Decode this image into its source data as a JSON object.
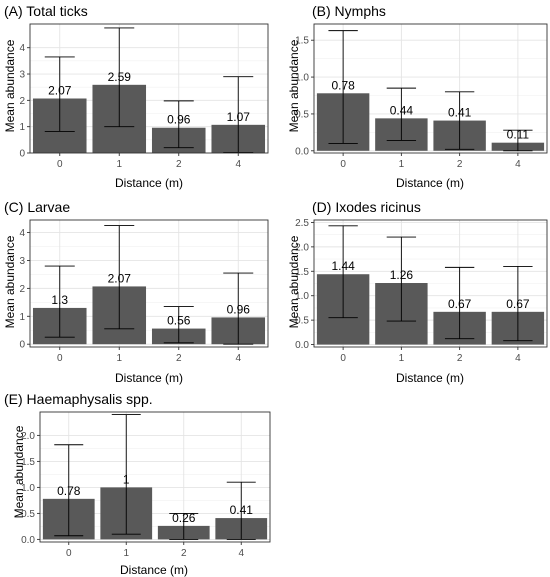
{
  "chart_data": [
    {
      "type": "bar",
      "title": "(A) Total ticks",
      "xlabel": "Distance (m)",
      "ylabel": "Mean abundance",
      "categories": [
        "0",
        "1",
        "2",
        "4"
      ],
      "values": [
        2.07,
        2.59,
        0.96,
        1.07
      ],
      "data_labels": [
        "2.07",
        "2.59",
        "0.96",
        "1.07"
      ],
      "error_low": [
        0.82,
        1.0,
        0.2,
        0.02
      ],
      "error_high": [
        3.65,
        4.75,
        1.98,
        2.9
      ],
      "ylim": [
        0,
        4.9
      ],
      "yticks": [
        0,
        1,
        2,
        3,
        4
      ],
      "ytick_labels": [
        "0",
        "1",
        "2",
        "3",
        "4"
      ],
      "grid": true,
      "bar_color": "#595959"
    },
    {
      "type": "bar",
      "title": "(B) Nymphs",
      "xlabel": "Distance (m)",
      "ylabel": "Mean abundance",
      "categories": [
        "0",
        "1",
        "2",
        "4"
      ],
      "values": [
        0.78,
        0.44,
        0.41,
        0.11
      ],
      "data_labels": [
        "0.78",
        "0.44",
        "0.41",
        "0.11"
      ],
      "error_low": [
        0.1,
        0.14,
        0.02,
        0.0
      ],
      "error_high": [
        1.63,
        0.85,
        0.8,
        0.28
      ],
      "ylim": [
        -0.03,
        1.72
      ],
      "yticks": [
        0,
        0.5,
        1.0,
        1.5
      ],
      "ytick_labels": [
        "0.0",
        "0.5",
        "1.0",
        "1.5"
      ],
      "grid": true,
      "bar_color": "#595959"
    },
    {
      "type": "bar",
      "title": "(C) Larvae",
      "xlabel": "Distance (m)",
      "ylabel": "Mean abundance",
      "categories": [
        "0",
        "1",
        "2",
        "4"
      ],
      "values": [
        1.3,
        2.07,
        0.56,
        0.96
      ],
      "data_labels": [
        "1.3",
        "2.07",
        "0.56",
        "0.96"
      ],
      "error_low": [
        0.25,
        0.55,
        0.05,
        0.0
      ],
      "error_high": [
        2.8,
        4.25,
        1.35,
        2.55
      ],
      "ylim": [
        -0.1,
        4.45
      ],
      "yticks": [
        0,
        1,
        2,
        3,
        4
      ],
      "ytick_labels": [
        "0",
        "1",
        "2",
        "3",
        "4"
      ],
      "grid": true,
      "bar_color": "#595959"
    },
    {
      "type": "bar",
      "title": "(D) Ixodes ricinus",
      "xlabel": "Distance (m)",
      "ylabel": "Mean abundance",
      "categories": [
        "0",
        "1",
        "2",
        "4"
      ],
      "values": [
        1.44,
        1.26,
        0.67,
        0.67
      ],
      "data_labels": [
        "1.44",
        "1.26",
        "0.67",
        "0.67"
      ],
      "error_low": [
        0.55,
        0.48,
        0.12,
        0.08
      ],
      "error_high": [
        2.43,
        2.2,
        1.58,
        1.6
      ],
      "ylim": [
        -0.05,
        2.55
      ],
      "yticks": [
        0,
        0.5,
        1.0,
        1.5,
        2.0,
        2.5
      ],
      "ytick_labels": [
        "0.0",
        "0.5",
        "1.0",
        "1.5",
        "2.0",
        "2.5"
      ],
      "grid": true,
      "bar_color": "#595959"
    },
    {
      "type": "bar",
      "title": "(E) Haemaphysalis spp.",
      "xlabel": "Distance (m)",
      "ylabel": "Mean abundance",
      "categories": [
        "0",
        "1",
        "2",
        "4"
      ],
      "values": [
        0.78,
        1.0,
        0.26,
        0.41
      ],
      "data_labels": [
        "0.78",
        "1",
        "0.26",
        "0.41"
      ],
      "error_low": [
        0.07,
        0.1,
        0.0,
        0.0
      ],
      "error_high": [
        1.82,
        2.4,
        0.5,
        1.1
      ],
      "ylim": [
        -0.05,
        2.45
      ],
      "yticks": [
        0,
        0.5,
        1.0,
        1.5,
        2.0
      ],
      "ytick_labels": [
        "0.0",
        "0.5",
        "1.0",
        "1.5",
        "2.0"
      ],
      "grid": true,
      "bar_color": "#595959"
    }
  ]
}
